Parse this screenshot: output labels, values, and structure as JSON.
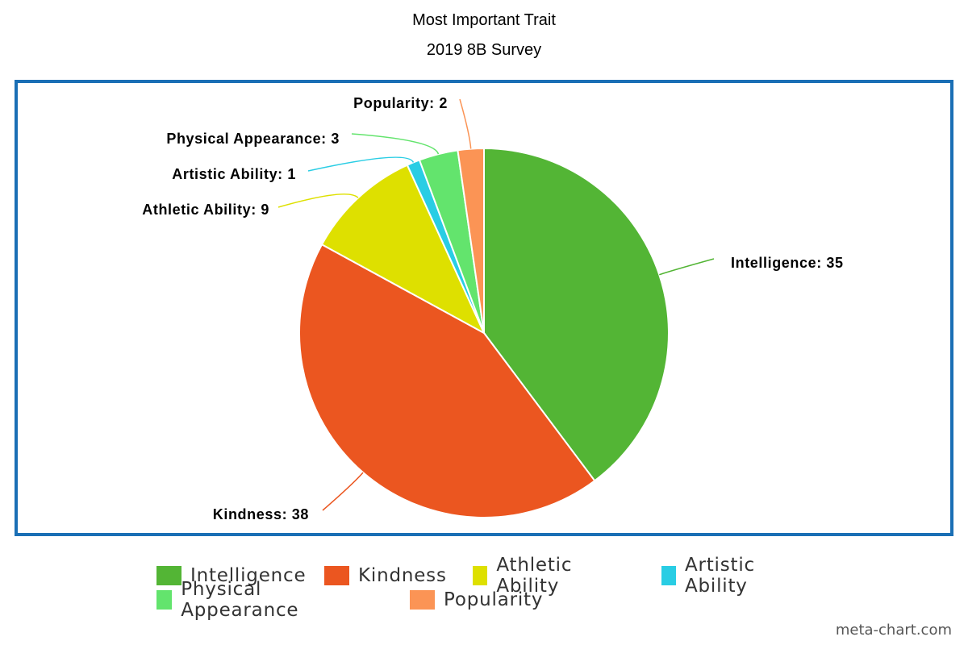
{
  "chart_data": {
    "type": "pie",
    "title": "Most Important Trait",
    "subtitle": "2019 8B Survey",
    "slices": [
      {
        "label": "Intelligence",
        "value": 35,
        "color": "#53b535"
      },
      {
        "label": "Kindness",
        "value": 38,
        "color": "#eb5620"
      },
      {
        "label": "Athletic Ability",
        "value": 9,
        "color": "#dee000"
      },
      {
        "label": "Artistic Ability",
        "value": 1,
        "color": "#29cde4"
      },
      {
        "label": "Physical Appearance",
        "value": 3,
        "color": "#63e46d"
      },
      {
        "label": "Popularity",
        "value": 2,
        "color": "#fb9455"
      }
    ],
    "legend_position": "bottom",
    "frame_color": "#1a6fb5"
  },
  "watermark": "meta-chart.com"
}
